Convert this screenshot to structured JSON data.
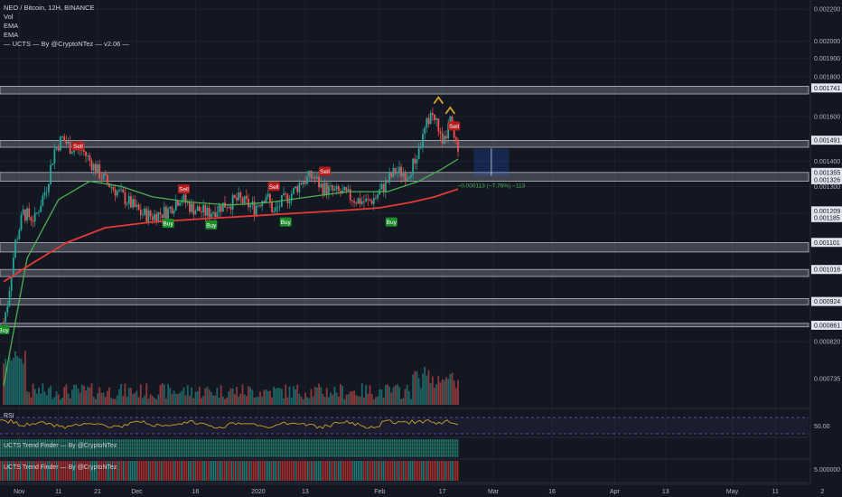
{
  "legend": {
    "title": "NEO / Bitcoin, 12H, BINANCE",
    "lines": [
      "Vol",
      "EMA",
      "EMA",
      "— UCTS — By @CryptoNTez — v2.06 —"
    ]
  },
  "panes": {
    "rsi_label": "RSI",
    "rsi_value": "50.00",
    "trend1_label": "UCTS Trend Finder — By @CryptoNTez",
    "trend2_label": "UCTS Trend Finder — By @CryptoNTez",
    "trend2_value": "5.000000"
  },
  "measure_label": "−0.000113 (−7.76%) −113",
  "colors": {
    "background": "#131722",
    "up": "#26a69a",
    "down": "#ef5350",
    "ema_fast": "#4caf50",
    "ema_slow": "#e53935",
    "sr_band": "#9598a1",
    "buy": "#1b8e2b",
    "sell": "#b71c1c",
    "rsi": "#c9a227",
    "measure": "#2962ff"
  },
  "chart_data": {
    "type": "candlestick",
    "title": "NEO / Bitcoin, 12H, BINANCE",
    "y_scale": "log",
    "ylim": [
      0.00068,
      0.00226
    ],
    "xlim_days": [
      -4,
      127
    ],
    "price_ticks": [
      "0.002200",
      "0.002000",
      "0.001900",
      "0.001800",
      "0.001600",
      "0.001400",
      "0.001300",
      "0.000820",
      "0.000735"
    ],
    "highlight_levels": [
      "0.001741",
      "0.001491",
      "0.001355",
      "0.001326",
      "0.001209",
      "0.001185",
      "0.001101",
      "0.001016",
      "0.000924",
      "0.000861"
    ],
    "sr_bands": [
      [
        0.00171,
        0.00175
      ],
      [
        0.00146,
        0.00149
      ],
      [
        0.00132,
        0.001355
      ],
      [
        0.00107,
        0.0011
      ],
      [
        0.000995,
        0.001016
      ],
      [
        0.000915,
        0.000932
      ],
      [
        0.000857,
        0.000866
      ]
    ],
    "time_labels": [
      "Nov",
      "11",
      "21",
      "Dec",
      "16",
      "2020",
      "13",
      "Feb",
      "17",
      "Mar",
      "16",
      "Apr",
      "13",
      "May",
      "11",
      "2"
    ],
    "time_label_days": [
      0,
      10,
      20,
      30,
      45,
      61,
      73,
      92,
      108,
      121,
      136,
      152,
      165,
      182,
      193,
      205
    ],
    "close_keypoints": [
      [
        -4,
        0.00087
      ],
      [
        -3,
        0.00092
      ],
      [
        -1,
        0.0011
      ],
      [
        1,
        0.0012
      ],
      [
        4,
        0.00118
      ],
      [
        7,
        0.0013
      ],
      [
        9,
        0.00145
      ],
      [
        11,
        0.0015
      ],
      [
        13,
        0.00146
      ],
      [
        16,
        0.00145
      ],
      [
        19,
        0.00138
      ],
      [
        22,
        0.00132
      ],
      [
        25,
        0.00128
      ],
      [
        28,
        0.00124
      ],
      [
        31,
        0.0012
      ],
      [
        34,
        0.00119
      ],
      [
        38,
        0.00121
      ],
      [
        41,
        0.00126
      ],
      [
        44,
        0.00122
      ],
      [
        48,
        0.0012
      ],
      [
        52,
        0.00123
      ],
      [
        56,
        0.00125
      ],
      [
        60,
        0.00122
      ],
      [
        63,
        0.00127
      ],
      [
        65,
        0.0012
      ],
      [
        67,
        0.00124
      ],
      [
        70,
        0.00128
      ],
      [
        72,
        0.00132
      ],
      [
        75,
        0.00134
      ],
      [
        77,
        0.0013
      ],
      [
        80,
        0.00128
      ],
      [
        83,
        0.00127
      ],
      [
        86,
        0.00125
      ],
      [
        89,
        0.00124
      ],
      [
        91,
        0.00126
      ],
      [
        94,
        0.00132
      ],
      [
        96,
        0.00136
      ],
      [
        99,
        0.00135
      ],
      [
        101,
        0.0014
      ],
      [
        103,
        0.0015
      ],
      [
        105,
        0.00162
      ],
      [
        107,
        0.00155
      ],
      [
        108,
        0.00145
      ],
      [
        110,
        0.00158
      ],
      [
        111,
        0.0015
      ],
      [
        112,
        0.00142
      ]
    ],
    "ema_fast": [
      [
        -4,
        0.00072
      ],
      [
        2,
        0.00105
      ],
      [
        10,
        0.00125
      ],
      [
        18,
        0.00132
      ],
      [
        26,
        0.0013
      ],
      [
        34,
        0.00126
      ],
      [
        44,
        0.00124
      ],
      [
        54,
        0.00123
      ],
      [
        64,
        0.00124
      ],
      [
        74,
        0.00126
      ],
      [
        84,
        0.00128
      ],
      [
        94,
        0.00128
      ],
      [
        102,
        0.00132
      ],
      [
        108,
        0.00137
      ],
      [
        112,
        0.00141
      ]
    ],
    "ema_slow": [
      [
        -4,
        0.00098
      ],
      [
        4,
        0.00104
      ],
      [
        12,
        0.0011
      ],
      [
        22,
        0.00115
      ],
      [
        34,
        0.00117
      ],
      [
        46,
        0.00118
      ],
      [
        58,
        0.00119
      ],
      [
        70,
        0.0012
      ],
      [
        82,
        0.00121
      ],
      [
        92,
        0.00122
      ],
      [
        100,
        0.00124
      ],
      [
        106,
        0.00126
      ],
      [
        112,
        0.00129
      ]
    ],
    "signals": [
      {
        "type": "Buy",
        "day": -4,
        "price": 0.00085
      },
      {
        "type": "Sell",
        "day": 15,
        "price": 0.001465
      },
      {
        "type": "Sell",
        "day": 42,
        "price": 0.00129
      },
      {
        "type": "Buy",
        "day": 38,
        "price": 0.001165
      },
      {
        "type": "Buy",
        "day": 49,
        "price": 0.00116
      },
      {
        "type": "Sell",
        "day": 65,
        "price": 0.0013
      },
      {
        "type": "Buy",
        "day": 68,
        "price": 0.00117
      },
      {
        "type": "Sell",
        "day": 78,
        "price": 0.00136
      },
      {
        "type": "Buy",
        "day": 95,
        "price": 0.00117
      },
      {
        "type": "Sell",
        "day": 111,
        "price": 0.001555
      }
    ],
    "measure_box": {
      "day_start": 116,
      "day_end": 125,
      "price_top": 0.001455,
      "price_bottom": 0.001342
    },
    "volume_color_up": "#26a69a",
    "volume_color_down": "#ef5350"
  }
}
